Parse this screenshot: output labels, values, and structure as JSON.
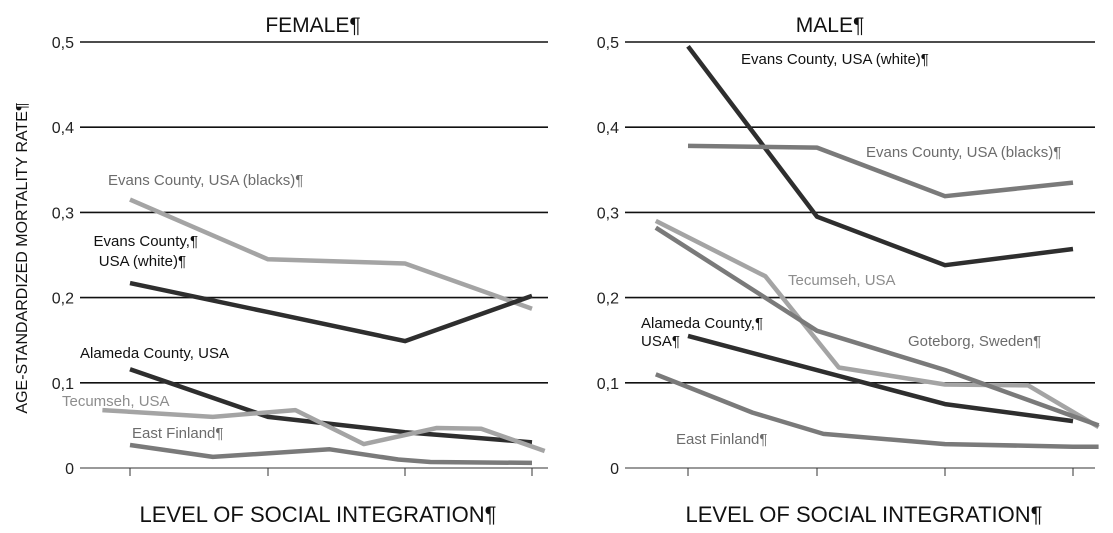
{
  "chart_data": {
    "type": "line",
    "ylabel": "AGE-STANDARDIZED MORTALITY RATE¶",
    "yticks": [
      "0",
      "0,1",
      "0,2",
      "0,3",
      "0,4",
      "0,5"
    ],
    "ylim": [
      0,
      0.5
    ],
    "grid": true,
    "colors": {
      "dark": "#2e2e2e",
      "mid": "#7a7a7a",
      "light": "#a4a4a4"
    },
    "panels": [
      {
        "title": "FEMALE¶",
        "xlabel": "LEVEL OF SOCIAL INTEGRATION¶",
        "series": [
          {
            "name": "Evans County, USA (blacks)¶",
            "color": "light",
            "x": [
              1,
              2,
              3,
              4
            ],
            "values": [
              0.315,
              0.245,
              0.24,
              0.187
            ]
          },
          {
            "name": "Evans County,¶ USA (white)¶",
            "color": "dark",
            "x": [
              1,
              2,
              3,
              4
            ],
            "values": [
              0.217,
              0.183,
              0.149,
              0.202
            ]
          },
          {
            "name": "Alameda County, USA",
            "color": "dark",
            "x": [
              1,
              2,
              3,
              3.6,
              4
            ],
            "values": [
              0.116,
              0.06,
              0.042,
              0.035,
              0.03
            ]
          },
          {
            "name": "Tecumseh, USA",
            "color": "light",
            "x": [
              0.8,
              1.2,
              1.6,
              2.2,
              2.7,
              3.25,
              3.6,
              4.1
            ],
            "values": [
              0.068,
              0.064,
              0.06,
              0.068,
              0.028,
              0.047,
              0.046,
              0.02
            ]
          },
          {
            "name": "East Finland¶",
            "color": "mid",
            "x": [
              1,
              1.6,
              2.45,
              2.95,
              3.2,
              4
            ],
            "values": [
              0.027,
              0.013,
              0.022,
              0.01,
              0.007,
              0.006
            ]
          }
        ]
      },
      {
        "title": "MALE¶",
        "xlabel": "LEVEL OF SOCIAL INTEGRATION¶",
        "series": [
          {
            "name": "Evans County, USA (white)¶",
            "color": "dark",
            "x": [
              1,
              2,
              3,
              4
            ],
            "values": [
              0.495,
              0.295,
              0.238,
              0.257
            ]
          },
          {
            "name": "Evans County, USA (blacks)¶",
            "color": "mid",
            "x": [
              1,
              2,
              3,
              4
            ],
            "values": [
              0.378,
              0.376,
              0.319,
              0.335
            ]
          },
          {
            "name": "Tecumseh, USA",
            "color": "light",
            "x": [
              0.75,
              1.6,
              2.17,
              3,
              3.65,
              4.2
            ],
            "values": [
              0.29,
              0.225,
              0.118,
              0.098,
              0.097,
              0.048
            ]
          },
          {
            "name": "Goteborg, Sweden¶",
            "color": "mid",
            "x": [
              0.75,
              2,
              3,
              4.2
            ],
            "values": [
              0.282,
              0.161,
              0.115,
              0.05
            ]
          },
          {
            "name": "Alameda County,¶ USA¶",
            "color": "dark",
            "x": [
              1,
              3,
              4
            ],
            "values": [
              0.155,
              0.075,
              0.055
            ]
          },
          {
            "name": "East Finland¶",
            "color": "mid",
            "x": [
              0.75,
              1.5,
              2.05,
              3,
              4,
              4.2
            ],
            "values": [
              0.11,
              0.065,
              0.04,
              0.028,
              0.025,
              0.025
            ]
          }
        ]
      }
    ]
  }
}
